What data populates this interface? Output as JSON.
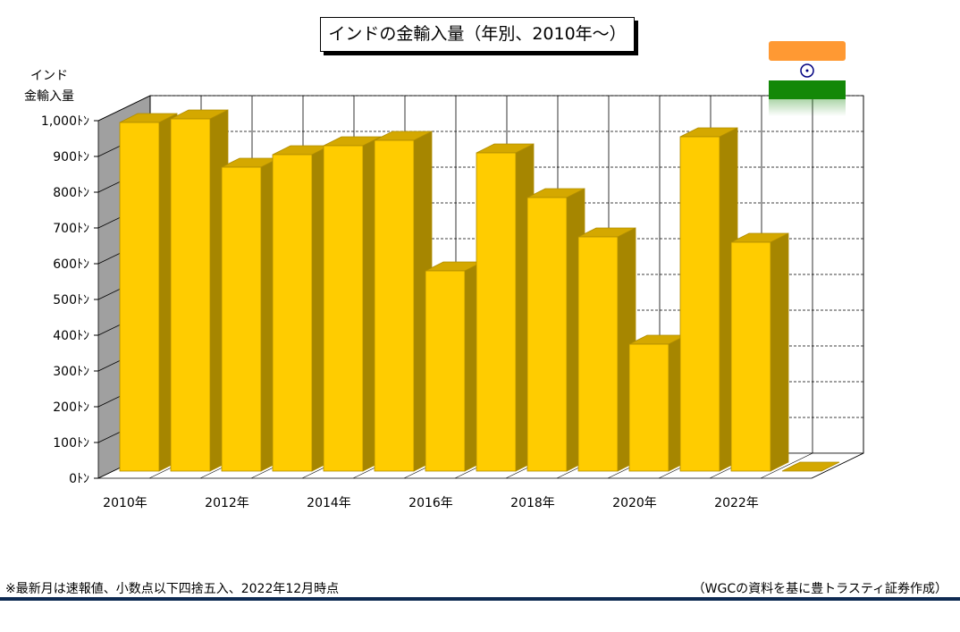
{
  "title": "インドの金輸入量（年別、2010年～）",
  "y_axis_label_lines": [
    "インド",
    "金輸入量"
  ],
  "footnote": "※最新月は速報値、小数点以下四捨五入、2022年12月時点",
  "source": "（WGCの資料を基に豊トラスティ証券作成）",
  "flag_icon": "india-flag-icon",
  "colors": {
    "bar_front": "#FFCC00",
    "bar_side": "#A68600",
    "bar_top": "#D4A800",
    "bar_edge": "#B08C00",
    "back_wall": "#FFFFFF",
    "side_wall": "#A0A0A0",
    "grid": "#000000",
    "bottom_rule": "#0E2A52",
    "flag_saffron": "#FF9933",
    "flag_green": "#138808",
    "flag_chakra": "#000080"
  },
  "chart_data": {
    "type": "bar",
    "categories": [
      "2010年",
      "2011年",
      "2012年",
      "2013年",
      "2014年",
      "2015年",
      "2016年",
      "2017年",
      "2018年",
      "2019年",
      "2020年",
      "2021年",
      "2022年",
      "2023年"
    ],
    "x_tick_labels": [
      "2010年",
      "",
      "2012年",
      "",
      "2014年",
      "",
      "2016年",
      "",
      "2018年",
      "",
      "2020年",
      "",
      "2022年",
      ""
    ],
    "values": [
      975,
      985,
      850,
      885,
      910,
      925,
      560,
      890,
      765,
      655,
      355,
      935,
      640,
      0
    ],
    "y_ticks": [
      0,
      100,
      200,
      300,
      400,
      500,
      600,
      700,
      800,
      900,
      1000
    ],
    "y_tick_labels": [
      "0ﾄﾝ",
      "100ﾄﾝ",
      "200ﾄﾝ",
      "300ﾄﾝ",
      "400ﾄﾝ",
      "500ﾄﾝ",
      "600ﾄﾝ",
      "700ﾄﾝ",
      "800ﾄﾝ",
      "900ﾄﾝ",
      "1,000ﾄﾝ"
    ],
    "ylim": [
      0,
      1000
    ],
    "grid": true,
    "legend": "none",
    "style": "3d"
  }
}
